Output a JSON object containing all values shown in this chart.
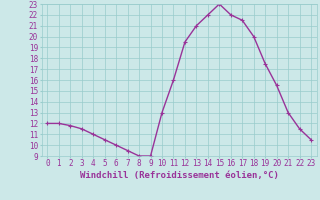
{
  "x": [
    0,
    1,
    2,
    3,
    4,
    5,
    6,
    7,
    8,
    9,
    10,
    11,
    12,
    13,
    14,
    15,
    16,
    17,
    18,
    19,
    20,
    21,
    22,
    23
  ],
  "y": [
    12,
    12,
    11.8,
    11.5,
    11,
    10.5,
    10,
    9.5,
    9,
    9,
    13,
    16,
    19.5,
    21,
    22,
    23,
    22,
    21.5,
    20,
    17.5,
    15.5,
    13,
    11.5,
    10.5
  ],
  "line_color": "#993399",
  "marker_color": "#993399",
  "bg_color": "#cce8e8",
  "grid_color": "#99cccc",
  "xlabel": "Windchill (Refroidissement éolien,°C)",
  "xlim": [
    -0.5,
    23.5
  ],
  "ylim": [
    9,
    23
  ],
  "xticks": [
    0,
    1,
    2,
    3,
    4,
    5,
    6,
    7,
    8,
    9,
    10,
    11,
    12,
    13,
    14,
    15,
    16,
    17,
    18,
    19,
    20,
    21,
    22,
    23
  ],
  "yticks": [
    9,
    10,
    11,
    12,
    13,
    14,
    15,
    16,
    17,
    18,
    19,
    20,
    21,
    22,
    23
  ],
  "tick_fontsize": 5.5,
  "xlabel_fontsize": 6.5,
  "marker_size": 2.5,
  "line_width": 1.0
}
